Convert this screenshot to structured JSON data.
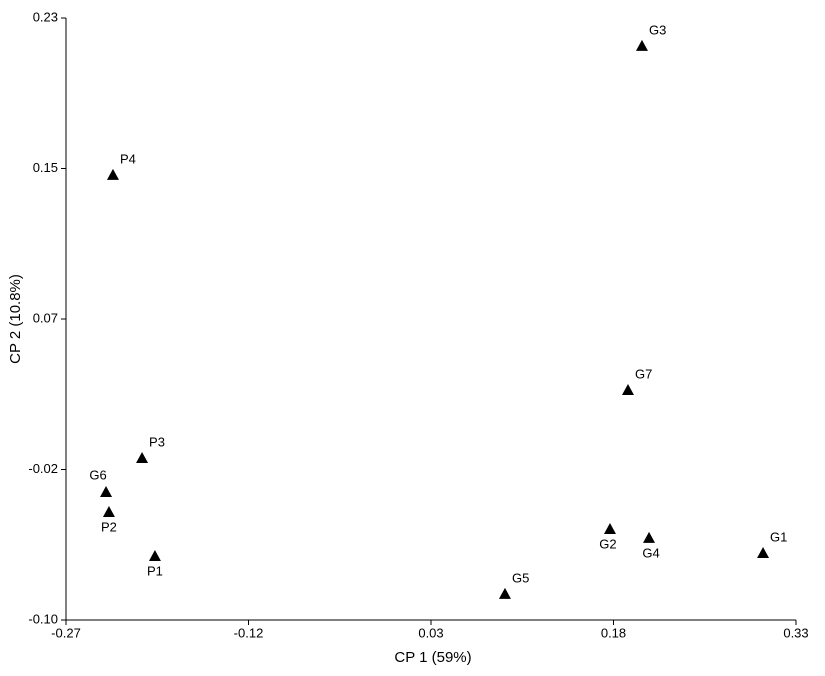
{
  "chart_data": {
    "type": "scatter",
    "x_label": "CP 1 (59%)",
    "y_label": "CP 2 (10.8%)",
    "xlim": [
      -0.27,
      0.33
    ],
    "ylim": [
      -0.1,
      0.23
    ],
    "xticks": [
      -0.27,
      -0.12,
      0.03,
      0.18,
      0.33
    ],
    "yticks": [
      {
        "value": -0.1,
        "label": "-0.10"
      },
      {
        "value": -0.0175,
        "label": "-0.02"
      },
      {
        "value": 0.065,
        "label": "0.07"
      },
      {
        "value": 0.1475,
        "label": "0.15"
      },
      {
        "value": 0.23,
        "label": "0.23"
      }
    ],
    "color": "#000000",
    "labels": [
      "G3",
      "P4",
      "G7",
      "P3",
      "G6",
      "P2",
      "P1",
      "G2",
      "G4",
      "G1",
      "G5"
    ],
    "x": [
      0.2034,
      -0.2314,
      0.1919,
      -0.2075,
      -0.2371,
      -0.2347,
      -0.1969,
      0.1771,
      0.2092,
      0.3029,
      0.0908
    ],
    "y": [
      0.2147,
      0.144,
      0.0261,
      -0.0112,
      -0.0298,
      -0.0408,
      -0.0649,
      -0.0501,
      -0.055,
      -0.0633,
      -0.0857
    ]
  }
}
